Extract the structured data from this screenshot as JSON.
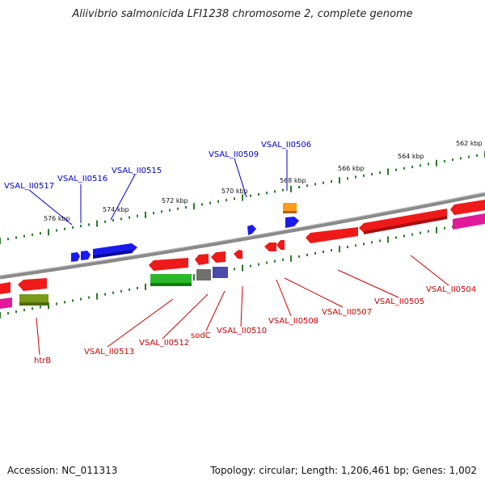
{
  "title": "Aliivibrio salmonicida LFI1238 chromosome 2, complete genome",
  "footer": {
    "accession": "Accession: NC_011313",
    "summary": "Topology: circular; Length: 1,206,461 bp; Genes: 1,002"
  },
  "colors": {
    "backbone": "#8a8a8a",
    "tick": "#2a7a2a",
    "label_top": "#0000cc",
    "label_bottom": "#cc0000"
  },
  "scale_labels": [
    "576 kbp",
    "574 kbp",
    "572 kbp",
    "570 kbp",
    "568 kbp",
    "566 kbp",
    "564 kbp",
    "562 kbp"
  ],
  "top_labels": [
    "VSAL_II0517",
    "VSAL_II0516",
    "VSAL_II0515",
    "VSAL_II0509",
    "VSAL_II0506"
  ],
  "bottom_labels": [
    "htrB",
    "VSAL_II0513",
    "VSAL_II0512",
    "sodC",
    "VSAL_II0510",
    "VSAL_II0508",
    "VSAL_II0507",
    "VSAL_II0505",
    "VSAL_II0504"
  ]
}
